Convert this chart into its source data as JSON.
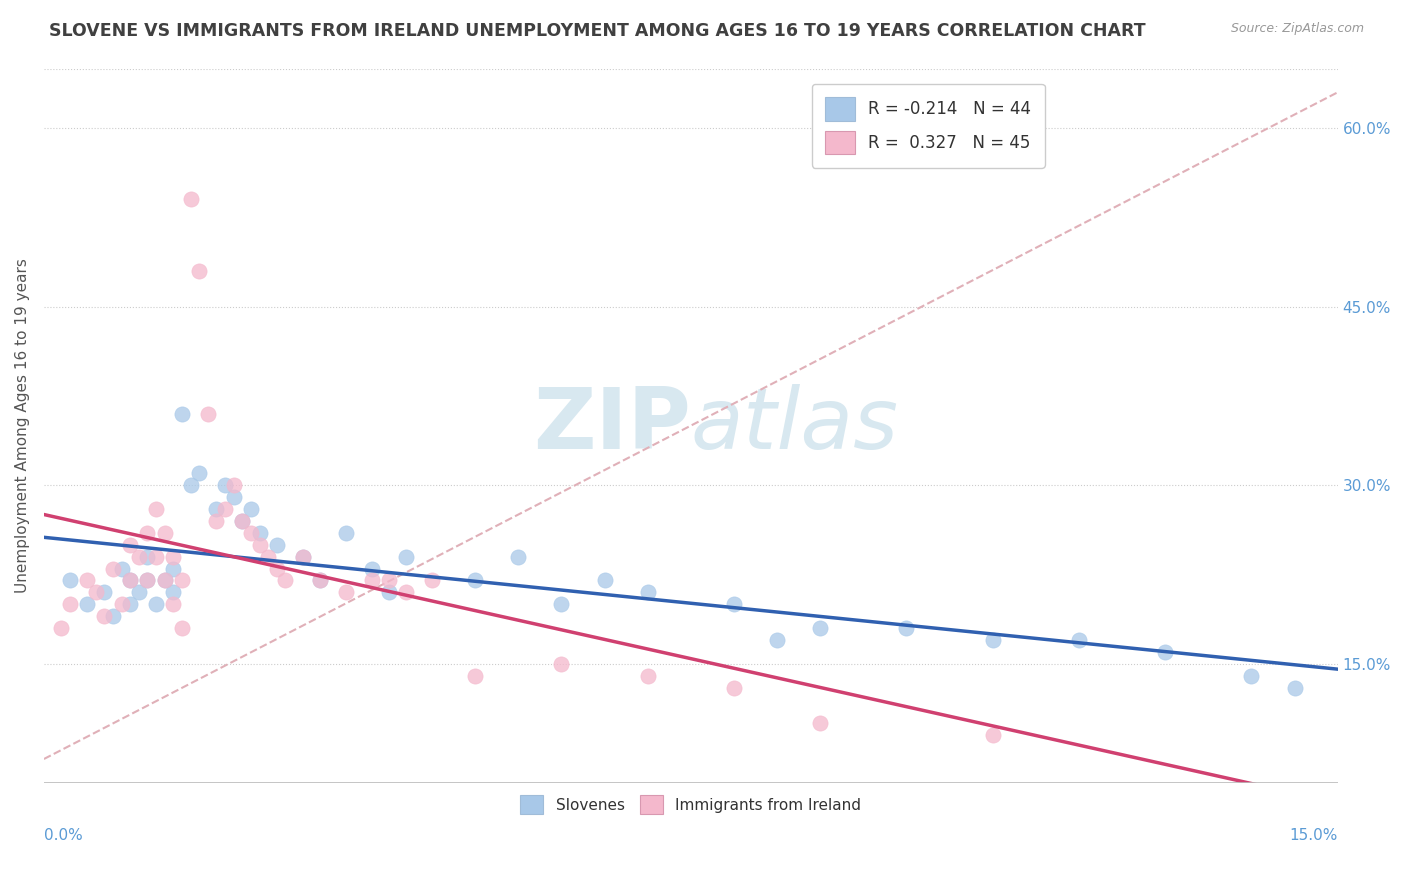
{
  "title": "SLOVENE VS IMMIGRANTS FROM IRELAND UNEMPLOYMENT AMONG AGES 16 TO 19 YEARS CORRELATION CHART",
  "source_text": "Source: ZipAtlas.com",
  "ylabel": "Unemployment Among Ages 16 to 19 years",
  "legend_labels": [
    "Slovenes",
    "Immigrants from Ireland"
  ],
  "legend_R": [
    -0.214,
    0.327
  ],
  "legend_N": [
    44,
    45
  ],
  "blue_color": "#a8c8e8",
  "pink_color": "#f4b8cc",
  "blue_line_color": "#3060b0",
  "pink_line_color": "#d04070",
  "right_yticks": [
    "15.0%",
    "30.0%",
    "45.0%",
    "60.0%"
  ],
  "right_ytick_vals": [
    0.15,
    0.3,
    0.45,
    0.6
  ],
  "xlim": [
    0.0,
    0.15
  ],
  "ylim": [
    0.05,
    0.65
  ],
  "blue_x": [
    0.003,
    0.005,
    0.007,
    0.008,
    0.009,
    0.01,
    0.01,
    0.011,
    0.012,
    0.012,
    0.013,
    0.014,
    0.015,
    0.015,
    0.016,
    0.017,
    0.018,
    0.02,
    0.021,
    0.022,
    0.023,
    0.024,
    0.025,
    0.027,
    0.03,
    0.032,
    0.035,
    0.038,
    0.04,
    0.042,
    0.05,
    0.055,
    0.06,
    0.065,
    0.07,
    0.08,
    0.085,
    0.09,
    0.1,
    0.11,
    0.12,
    0.13,
    0.14,
    0.145
  ],
  "blue_y": [
    0.22,
    0.2,
    0.21,
    0.19,
    0.23,
    0.22,
    0.2,
    0.21,
    0.24,
    0.22,
    0.2,
    0.22,
    0.23,
    0.21,
    0.36,
    0.3,
    0.31,
    0.28,
    0.3,
    0.29,
    0.27,
    0.28,
    0.26,
    0.25,
    0.24,
    0.22,
    0.26,
    0.23,
    0.21,
    0.24,
    0.22,
    0.24,
    0.2,
    0.22,
    0.21,
    0.2,
    0.17,
    0.18,
    0.18,
    0.17,
    0.17,
    0.16,
    0.14,
    0.13
  ],
  "pink_x": [
    0.002,
    0.003,
    0.005,
    0.006,
    0.007,
    0.008,
    0.009,
    0.01,
    0.01,
    0.011,
    0.012,
    0.012,
    0.013,
    0.013,
    0.014,
    0.014,
    0.015,
    0.015,
    0.016,
    0.016,
    0.017,
    0.018,
    0.019,
    0.02,
    0.021,
    0.022,
    0.023,
    0.024,
    0.025,
    0.026,
    0.027,
    0.028,
    0.03,
    0.032,
    0.035,
    0.038,
    0.04,
    0.042,
    0.045,
    0.05,
    0.06,
    0.07,
    0.08,
    0.09,
    0.11
  ],
  "pink_y": [
    0.18,
    0.2,
    0.22,
    0.21,
    0.19,
    0.23,
    0.2,
    0.22,
    0.25,
    0.24,
    0.22,
    0.26,
    0.24,
    0.28,
    0.26,
    0.22,
    0.24,
    0.2,
    0.22,
    0.18,
    0.54,
    0.48,
    0.36,
    0.27,
    0.28,
    0.3,
    0.27,
    0.26,
    0.25,
    0.24,
    0.23,
    0.22,
    0.24,
    0.22,
    0.21,
    0.22,
    0.22,
    0.21,
    0.22,
    0.14,
    0.15,
    0.14,
    0.13,
    0.1,
    0.09
  ],
  "ref_line_x": [
    0.0,
    0.15
  ],
  "ref_line_y": [
    0.07,
    0.63
  ],
  "watermark_text": "ZIPatlas",
  "watermark_color": "#d8e8f0"
}
